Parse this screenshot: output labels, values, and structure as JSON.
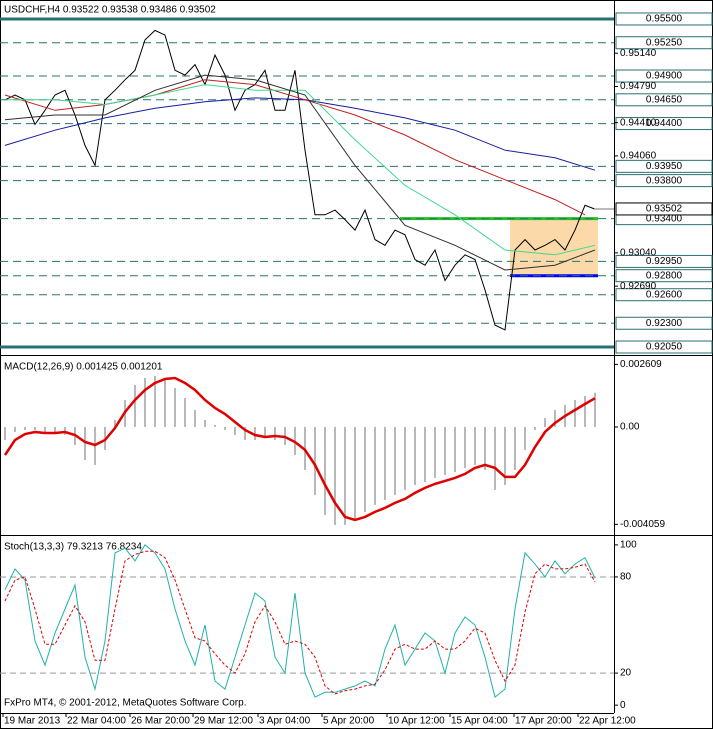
{
  "chart_data": [
    {
      "type": "line",
      "title": "USDCHF,H4  0.93522 0.93538 0.93486 0.93502",
      "xlim": [
        -0.5,
        60.9
      ],
      "ylim": [
        0.91987,
        0.95689
      ],
      "x": [
        0,
        1,
        2,
        3,
        4,
        5,
        6,
        7,
        8,
        9,
        10,
        11,
        12,
        13,
        14,
        15,
        16,
        17,
        18,
        19,
        20,
        21,
        22,
        23,
        24,
        25,
        26,
        27,
        28,
        29,
        30,
        31,
        32,
        33,
        34,
        35,
        36,
        37,
        38,
        39,
        40,
        41,
        42,
        43,
        44,
        45,
        46,
        47,
        48,
        49,
        50,
        51,
        52,
        53,
        54,
        55,
        56,
        57,
        58,
        59
      ],
      "series": [
        {
          "color": "#000000",
          "values": [
            0.9465,
            0.947,
            0.9465,
            0.9439,
            0.9454,
            0.947,
            0.9475,
            0.9449,
            0.9417,
            0.9396,
            0.9465,
            0.9475,
            0.9486,
            0.9496,
            0.9528,
            0.9538,
            0.9533,
            0.9496,
            0.9491,
            0.9502,
            0.9481,
            0.9512,
            0.9491,
            0.9454,
            0.9475,
            0.9481,
            0.9496,
            0.9454,
            0.9454,
            0.9496,
            0.9412,
            0.9344,
            0.9344,
            0.9349,
            0.9339,
            0.9328,
            0.9349,
            0.9318,
            0.9312,
            0.9328,
            0.9323,
            0.9297,
            0.9291,
            0.9307,
            0.9275,
            0.9291,
            0.9302,
            0.9297,
            0.9265,
            0.9228,
            0.9223,
            0.9307,
            0.9318,
            0.9307,
            0.9312,
            0.9318,
            0.9307,
            0.9328,
            0.9354,
            0.935
          ]
        },
        {
          "color": "#1a1aa0",
          "x": [
            0,
            5,
            10,
            15,
            20,
            25,
            30,
            35,
            40,
            45,
            50,
            55,
            59
          ],
          "values": [
            0.9417,
            0.9433,
            0.9446,
            0.9456,
            0.9463,
            0.9467,
            0.9465,
            0.9456,
            0.9446,
            0.9433,
            0.9412,
            0.9404,
            0.9391
          ]
        },
        {
          "color": "#c02020",
          "x": [
            0,
            5,
            10,
            15,
            20,
            25,
            30,
            35,
            40,
            45,
            50,
            55,
            58
          ],
          "values": [
            0.947,
            0.9454,
            0.946,
            0.947,
            0.9486,
            0.9481,
            0.9465,
            0.9449,
            0.9428,
            0.9402,
            0.9381,
            0.936,
            0.9344
          ]
        },
        {
          "color": "#40d890",
          "x": [
            0,
            5,
            10,
            15,
            20,
            25,
            30,
            35,
            40,
            45,
            50,
            55,
            59
          ],
          "values": [
            0.9465,
            0.9465,
            0.946,
            0.947,
            0.9481,
            0.9475,
            0.9475,
            0.9423,
            0.9375,
            0.9344,
            0.9307,
            0.9302,
            0.9312
          ]
        },
        {
          "color": "#303030",
          "x": [
            0,
            5,
            10,
            15,
            20,
            25,
            30,
            35,
            40,
            45,
            50,
            55,
            59
          ],
          "values": [
            0.9444,
            0.9449,
            0.9449,
            0.9475,
            0.9491,
            0.9486,
            0.947,
            0.9396,
            0.9333,
            0.9312,
            0.9286,
            0.9291,
            0.9307
          ]
        }
      ],
      "yticks": [
        {
          "value": 0.9514,
          "label": "0.95140"
        },
        {
          "value": 0.9479,
          "label": "0.94790"
        },
        {
          "value": 0.9441,
          "label": "0.94410"
        },
        {
          "value": 0.9406,
          "label": "0.94060"
        },
        {
          "value": 0.9304,
          "label": "0.93040"
        },
        {
          "value": 0.9269,
          "label": "0.92690"
        }
      ],
      "level_color": "#2a7070",
      "levels": [
        {
          "value": 0.955,
          "label": "0.95500",
          "style": "solid"
        },
        {
          "value": 0.9525,
          "label": "0.95250",
          "style": "dashed"
        },
        {
          "value": 0.949,
          "label": "0.94900",
          "style": "dashed"
        },
        {
          "value": 0.9465,
          "label": "0.94650",
          "style": "dashed"
        },
        {
          "value": 0.944,
          "label": "0.94400",
          "style": "dashed"
        },
        {
          "value": 0.9395,
          "label": "0.93950",
          "style": "dashed"
        },
        {
          "value": 0.938,
          "label": "0.93800",
          "style": "dashed"
        },
        {
          "value": 0.934,
          "label": "0.93400",
          "style": "dashed"
        },
        {
          "value": 0.9295,
          "label": "0.92950",
          "style": "dashed"
        },
        {
          "value": 0.928,
          "label": "0.92800",
          "style": "dashed"
        },
        {
          "value": 0.926,
          "label": "0.92600",
          "style": "dashed"
        },
        {
          "value": 0.923,
          "label": "0.92300",
          "style": "dashed"
        },
        {
          "value": 0.9205,
          "label": "0.92050",
          "style": "solid"
        }
      ],
      "last_price": {
        "value": 0.93502,
        "label": "0.93502"
      }
    },
    {
      "type": "line",
      "title": "MACD(12,26,9) 0.001425 0.001201",
      "xlim": [
        -0.5,
        60.9
      ],
      "ylim": [
        -0.00442,
        0.002875
      ],
      "x": [
        0,
        1,
        2,
        3,
        4,
        5,
        6,
        7,
        8,
        9,
        10,
        11,
        12,
        13,
        14,
        15,
        16,
        17,
        18,
        19,
        20,
        21,
        22,
        23,
        24,
        25,
        26,
        27,
        28,
        29,
        30,
        31,
        32,
        33,
        34,
        35,
        36,
        37,
        38,
        39,
        40,
        41,
        42,
        43,
        44,
        45,
        46,
        47,
        48,
        49,
        50,
        51,
        52,
        53,
        54,
        55,
        56,
        57,
        58,
        59
      ],
      "series": [
        {
          "type": "histogram",
          "color": "#b8b8b8",
          "values": [
            -0.000542,
            -0.000208,
            -0.000125,
            -0.000125,
            -0.000208,
            -0.000208,
            -0.000333,
            -0.00075,
            -0.001375,
            -0.001583,
            -0.000958,
            0.000292,
            0.001125,
            0.00175,
            0.002042,
            0.002125,
            0.001958,
            0.001625,
            0.001208,
            0.000708,
            0.000292,
            8.3e-05,
            -0.000125,
            -0.000333,
            -0.000542,
            -0.000542,
            -0.000458,
            -0.000542,
            -0.00075,
            -0.001167,
            -0.001792,
            -0.002833,
            -0.003667,
            -0.004083,
            -0.004083,
            -0.003875,
            -0.003542,
            -0.00325,
            -0.003042,
            -0.002833,
            -0.002625,
            -0.002417,
            -0.002292,
            -0.002125,
            -0.002,
            -0.001875,
            -0.001708,
            -0.001583,
            -0.001792,
            -0.002625,
            -0.002417,
            -0.001792,
            -0.000958,
            -0.000125,
            0.000375,
            0.000708,
            0.000917,
            0.001125,
            0.001292,
            0.001425
          ]
        },
        {
          "color": "#e00000",
          "width": 2.5,
          "values": [
            -0.001167,
            -0.000542,
            -0.000292,
            -0.000208,
            -0.00025,
            -0.00025,
            -0.000208,
            -0.000333,
            -0.000625,
            -0.00075,
            -0.000542,
            -4.2e-05,
            0.000625,
            0.001125,
            0.001542,
            0.001833,
            0.002,
            0.002042,
            0.001833,
            0.001542,
            0.001125,
            0.000792,
            0.000542,
            0.000208,
            -0.000125,
            -0.000333,
            -0.000417,
            -0.000375,
            -0.000417,
            -0.000625,
            -0.000958,
            -0.001583,
            -0.002417,
            -0.003167,
            -0.00375,
            -0.003875,
            -0.00375,
            -0.003542,
            -0.003375,
            -0.003167,
            -0.003,
            -0.00275,
            -0.002542,
            -0.002375,
            -0.00225,
            -0.002125,
            -0.001958,
            -0.001708,
            -0.001583,
            -0.001708,
            -0.002083,
            -0.002083,
            -0.001583,
            -0.000833,
            -0.000208,
            0.000167,
            0.000458,
            0.000708,
            0.000958,
            0.001201
          ]
        }
      ],
      "yticks": [
        0.002609,
        {
          "value": 0,
          "label": "0.00"
        },
        -0.004059
      ]
    },
    {
      "type": "line",
      "title": "Stoch(13,3,3) 79.3213 76.8234",
      "xlim": [
        -0.5,
        60.9
      ],
      "ylim": [
        -4.9,
        104.3
      ],
      "x": [
        0,
        1,
        2,
        3,
        4,
        5,
        6,
        7,
        8,
        9,
        10,
        11,
        12,
        13,
        14,
        15,
        16,
        17,
        18,
        19,
        20,
        21,
        22,
        23,
        24,
        25,
        26,
        27,
        28,
        29,
        30,
        31,
        32,
        33,
        34,
        35,
        36,
        37,
        38,
        39,
        40,
        41,
        42,
        43,
        44,
        45,
        46,
        47,
        48,
        49,
        50,
        51,
        52,
        53,
        54,
        55,
        56,
        57,
        58,
        59
      ],
      "series": [
        {
          "color": "#20b2aa",
          "values": [
            72,
            85,
            78,
            40,
            25,
            45,
            60,
            75,
            30,
            10,
            40,
            95,
            98,
            90,
            100,
            95,
            85,
            60,
            40,
            25,
            50,
            15,
            10,
            30,
            50,
            70,
            65,
            30,
            20,
            70,
            20,
            5,
            8,
            8,
            10,
            12,
            15,
            12,
            35,
            50,
            25,
            35,
            45,
            40,
            20,
            45,
            55,
            50,
            30,
            5,
            10,
            60,
            95,
            88,
            80,
            90,
            82,
            88,
            92,
            79.3213
          ]
        },
        {
          "color": "#e00000",
          "dash": true,
          "values": [
            65,
            78,
            80,
            60,
            38,
            38,
            50,
            62,
            52,
            28,
            28,
            60,
            90,
            94,
            96,
            96,
            92,
            78,
            60,
            42,
            40,
            32,
            25,
            20,
            32,
            52,
            62,
            52,
            38,
            40,
            38,
            30,
            12,
            7,
            9,
            10,
            12,
            13,
            22,
            35,
            38,
            35,
            35,
            40,
            35,
            35,
            40,
            48,
            45,
            28,
            15,
            25,
            58,
            82,
            88,
            85,
            85,
            86,
            88,
            76.8234
          ]
        }
      ],
      "yticks": [
        100,
        80,
        20,
        0
      ],
      "grid_levels": [
        80,
        20
      ],
      "xticks": [
        {
          "value": -0.2,
          "label": "19 Mar 2013"
        },
        {
          "value": 6.1,
          "label": "22 Mar 04:00"
        },
        {
          "value": 12.5,
          "label": "26 Mar 20:00"
        },
        {
          "value": 18.8,
          "label": "29 Mar 12:00"
        },
        {
          "value": 25.3,
          "label": "3 Apr 04:00"
        },
        {
          "value": 31.7,
          "label": "5 Apr 20:00"
        },
        {
          "value": 38.2,
          "label": "10 Apr 12:00"
        },
        {
          "value": 44.5,
          "label": "15 Apr 04:00"
        },
        {
          "value": 50.9,
          "label": "17 Apr 20:00"
        },
        {
          "value": 57.3,
          "label": "22 Apr 12:00"
        }
      ]
    }
  ],
  "footer": "FxPro MT4, © 2001-2012, MetaQuotes Software Corp."
}
